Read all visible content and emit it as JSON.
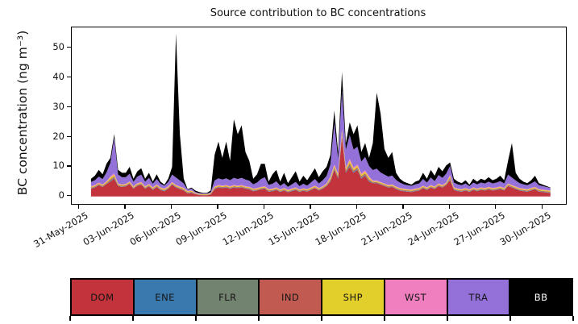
{
  "figure": {
    "title": "Source contribution to BC concentrations",
    "background": "#ffffff"
  },
  "y_axis": {
    "label": "BC concentration (ng m⁻³)",
    "ticks": [
      0,
      10,
      20,
      30,
      40,
      50
    ],
    "min": -2.5,
    "max": 57
  },
  "x_axis": {
    "tick_days": [
      0,
      3,
      6,
      9,
      12,
      15,
      18,
      21,
      24,
      27,
      30
    ],
    "tick_labels": [
      "31-May-2025",
      "03-Jun-2025",
      "06-Jun-2025",
      "09-Jun-2025",
      "12-Jun-2025",
      "15-Jun-2025",
      "18-Jun-2025",
      "21-Jun-2025",
      "24-Jun-2025",
      "27-Jun-2025",
      "30-Jun-2025"
    ],
    "min_day": -0.5,
    "max_day": 31.5,
    "label_rotation_deg": 30
  },
  "chart_data": {
    "type": "area",
    "stacked": true,
    "title": "Source contribution to BC concentrations",
    "ylabel": "BC concentration (ng m⁻³)",
    "x_start": "31-May-2025 18:00",
    "x_step_hours": 6,
    "n_points": 120,
    "ylim": [
      -2.5,
      57
    ],
    "grid": false,
    "legend_position": "bottom",
    "series": [
      {
        "name": "DOM",
        "color": "#c2333c",
        "values": [
          2.6,
          3.0,
          3.8,
          3.2,
          4.2,
          5.0,
          6.0,
          3.5,
          3.2,
          3.4,
          4.2,
          2.6,
          3.6,
          4.0,
          2.6,
          3.4,
          2.2,
          3.2,
          2.2,
          1.8,
          2.6,
          4.0,
          3.0,
          2.5,
          2.0,
          1.0,
          1.2,
          0.8,
          0.5,
          0.4,
          0.4,
          0.7,
          2.5,
          3.0,
          2.8,
          3.0,
          2.6,
          3.0,
          2.8,
          3.0,
          2.6,
          2.4,
          1.8,
          2.0,
          2.4,
          2.6,
          1.6,
          1.8,
          2.2,
          1.5,
          2.0,
          1.4,
          1.8,
          2.2,
          1.5,
          1.9,
          1.6,
          2.2,
          2.8,
          2.0,
          2.6,
          3.5,
          5.0,
          9.0,
          6.0,
          20.0,
          8.0,
          10.0,
          8.0,
          9.0,
          6.0,
          7.0,
          5.0,
          4.5,
          4.5,
          4.0,
          3.5,
          3.0,
          3.2,
          2.5,
          2.0,
          1.8,
          1.6,
          1.5,
          1.8,
          2.0,
          2.8,
          2.2,
          3.0,
          2.5,
          3.5,
          3.0,
          3.8,
          5.5,
          2.2,
          1.8,
          1.6,
          2.0,
          1.5,
          2.2,
          1.8,
          2.2,
          2.0,
          2.4,
          2.0,
          2.2,
          2.5,
          2.0,
          3.5,
          3.0,
          2.5,
          2.0,
          1.8,
          1.6,
          2.0,
          2.4,
          1.6,
          1.5,
          1.3,
          1.2
        ]
      },
      {
        "name": "ENE",
        "color": "#3a79ae",
        "values": [
          0.1,
          0.1,
          0.1,
          0.1,
          0.1,
          0.2,
          0.2,
          0.1,
          0.1,
          0.1,
          0.1,
          0.1,
          0.1,
          0.1,
          0.1,
          0.1,
          0.1,
          0.1,
          0.1,
          0.1,
          0.1,
          0.1,
          0.1,
          0.1,
          0.1,
          0.1,
          0.1,
          0.05,
          0.05,
          0.05,
          0.05,
          0.05,
          0.1,
          0.1,
          0.1,
          0.1,
          0.1,
          0.1,
          0.1,
          0.1,
          0.1,
          0.1,
          0.1,
          0.1,
          0.1,
          0.1,
          0.1,
          0.1,
          0.1,
          0.1,
          0.1,
          0.1,
          0.1,
          0.1,
          0.1,
          0.1,
          0.1,
          0.1,
          0.1,
          0.1,
          0.1,
          0.1,
          0.2,
          0.2,
          0.2,
          0.3,
          0.2,
          0.3,
          0.2,
          0.2,
          0.2,
          0.2,
          0.2,
          0.1,
          0.1,
          0.1,
          0.1,
          0.1,
          0.1,
          0.1,
          0.1,
          0.1,
          0.1,
          0.1,
          0.1,
          0.1,
          0.1,
          0.1,
          0.1,
          0.1,
          0.1,
          0.1,
          0.1,
          0.2,
          0.1,
          0.1,
          0.1,
          0.1,
          0.1,
          0.1,
          0.1,
          0.1,
          0.1,
          0.1,
          0.1,
          0.1,
          0.1,
          0.1,
          0.1,
          0.1,
          0.1,
          0.1,
          0.1,
          0.1,
          0.1,
          0.1,
          0.1,
          0.1,
          0.1,
          0.1
        ]
      },
      {
        "name": "FLR",
        "color": "#72836f",
        "values": [
          0.1,
          0.1,
          0.1,
          0.1,
          0.1,
          0.2,
          0.2,
          0.1,
          0.1,
          0.1,
          0.1,
          0.1,
          0.1,
          0.1,
          0.1,
          0.1,
          0.1,
          0.1,
          0.1,
          0.1,
          0.1,
          0.1,
          0.1,
          0.1,
          0.1,
          0.1,
          0.1,
          0.05,
          0.05,
          0.05,
          0.05,
          0.05,
          0.1,
          0.1,
          0.1,
          0.1,
          0.1,
          0.1,
          0.1,
          0.1,
          0.1,
          0.1,
          0.1,
          0.1,
          0.1,
          0.1,
          0.1,
          0.1,
          0.1,
          0.1,
          0.1,
          0.1,
          0.1,
          0.1,
          0.1,
          0.1,
          0.1,
          0.1,
          0.1,
          0.1,
          0.1,
          0.1,
          0.2,
          0.2,
          0.2,
          0.3,
          0.2,
          0.3,
          0.2,
          0.2,
          0.2,
          0.2,
          0.2,
          0.1,
          0.1,
          0.1,
          0.1,
          0.1,
          0.1,
          0.1,
          0.1,
          0.1,
          0.1,
          0.1,
          0.1,
          0.1,
          0.1,
          0.1,
          0.1,
          0.1,
          0.1,
          0.1,
          0.1,
          0.2,
          0.1,
          0.1,
          0.1,
          0.1,
          0.1,
          0.1,
          0.1,
          0.1,
          0.1,
          0.1,
          0.1,
          0.1,
          0.1,
          0.1,
          0.1,
          0.1,
          0.1,
          0.1,
          0.1,
          0.1,
          0.1,
          0.1,
          0.1,
          0.1,
          0.1,
          0.1
        ]
      },
      {
        "name": "IND",
        "color": "#c15b52",
        "values": [
          0.2,
          0.2,
          0.2,
          0.2,
          0.2,
          0.4,
          0.4,
          0.2,
          0.2,
          0.2,
          0.2,
          0.2,
          0.2,
          0.2,
          0.2,
          0.2,
          0.2,
          0.2,
          0.2,
          0.2,
          0.2,
          0.2,
          0.2,
          0.2,
          0.2,
          0.2,
          0.2,
          0.1,
          0.1,
          0.1,
          0.1,
          0.1,
          0.2,
          0.2,
          0.2,
          0.2,
          0.2,
          0.2,
          0.2,
          0.2,
          0.2,
          0.2,
          0.2,
          0.2,
          0.2,
          0.2,
          0.2,
          0.2,
          0.2,
          0.2,
          0.2,
          0.2,
          0.2,
          0.2,
          0.2,
          0.2,
          0.2,
          0.2,
          0.2,
          0.2,
          0.2,
          0.2,
          0.4,
          0.4,
          0.4,
          0.6,
          0.4,
          0.6,
          0.4,
          0.4,
          0.4,
          0.4,
          0.4,
          0.2,
          0.2,
          0.2,
          0.2,
          0.2,
          0.2,
          0.2,
          0.2,
          0.2,
          0.2,
          0.2,
          0.2,
          0.2,
          0.2,
          0.2,
          0.2,
          0.2,
          0.2,
          0.2,
          0.2,
          0.4,
          0.2,
          0.2,
          0.2,
          0.2,
          0.2,
          0.2,
          0.2,
          0.2,
          0.2,
          0.2,
          0.2,
          0.2,
          0.2,
          0.2,
          0.2,
          0.2,
          0.2,
          0.2,
          0.2,
          0.2,
          0.2,
          0.2,
          0.2,
          0.2,
          0.2,
          0.2
        ]
      },
      {
        "name": "SHP",
        "color": "#e3cf2b",
        "values": [
          0.3,
          0.3,
          0.3,
          0.3,
          0.3,
          0.6,
          0.6,
          0.3,
          0.3,
          0.3,
          0.3,
          0.3,
          0.3,
          0.3,
          0.3,
          0.3,
          0.3,
          0.3,
          0.3,
          0.3,
          0.3,
          0.3,
          0.3,
          0.3,
          0.3,
          0.3,
          0.3,
          0.15,
          0.15,
          0.15,
          0.15,
          0.15,
          0.3,
          0.3,
          0.3,
          0.3,
          0.3,
          0.3,
          0.3,
          0.3,
          0.3,
          0.3,
          0.3,
          0.3,
          0.3,
          0.3,
          0.3,
          0.3,
          0.3,
          0.3,
          0.3,
          0.3,
          0.3,
          0.3,
          0.3,
          0.3,
          0.3,
          0.3,
          0.3,
          0.3,
          0.3,
          0.3,
          0.6,
          0.6,
          0.6,
          0.9,
          0.6,
          0.9,
          0.6,
          0.6,
          0.6,
          0.6,
          0.6,
          0.3,
          0.3,
          0.3,
          0.3,
          0.3,
          0.3,
          0.3,
          0.3,
          0.3,
          0.3,
          0.3,
          0.3,
          0.3,
          0.3,
          0.3,
          0.3,
          0.3,
          0.3,
          0.3,
          0.3,
          0.6,
          0.3,
          0.3,
          0.3,
          0.3,
          0.3,
          0.3,
          0.3,
          0.3,
          0.3,
          0.3,
          0.3,
          0.3,
          0.3,
          0.3,
          0.3,
          0.3,
          0.3,
          0.3,
          0.3,
          0.3,
          0.3,
          0.3,
          0.3,
          0.3,
          0.3,
          0.3
        ]
      },
      {
        "name": "WST",
        "color": "#f07fc0",
        "values": [
          0.2,
          0.2,
          0.2,
          0.2,
          0.2,
          0.4,
          0.4,
          0.2,
          0.2,
          0.2,
          0.2,
          0.2,
          0.2,
          0.2,
          0.2,
          0.2,
          0.2,
          0.2,
          0.2,
          0.2,
          0.2,
          0.2,
          0.2,
          0.2,
          0.2,
          0.2,
          0.2,
          0.1,
          0.1,
          0.1,
          0.1,
          0.1,
          0.2,
          0.2,
          0.2,
          0.2,
          0.2,
          0.2,
          0.2,
          0.2,
          0.2,
          0.2,
          0.2,
          0.2,
          0.2,
          0.2,
          0.2,
          0.2,
          0.2,
          0.2,
          0.2,
          0.2,
          0.2,
          0.2,
          0.2,
          0.2,
          0.2,
          0.2,
          0.2,
          0.2,
          0.2,
          0.2,
          0.4,
          0.4,
          0.4,
          0.6,
          0.4,
          0.6,
          0.4,
          0.4,
          0.4,
          0.4,
          0.4,
          0.2,
          0.2,
          0.2,
          0.2,
          0.2,
          0.2,
          0.2,
          0.2,
          0.2,
          0.2,
          0.2,
          0.2,
          0.2,
          0.2,
          0.2,
          0.2,
          0.2,
          0.2,
          0.2,
          0.2,
          0.4,
          0.2,
          0.2,
          0.2,
          0.2,
          0.2,
          0.2,
          0.2,
          0.2,
          0.2,
          0.2,
          0.2,
          0.2,
          0.2,
          0.2,
          0.2,
          0.2,
          0.2,
          0.2,
          0.2,
          0.2,
          0.2,
          0.2,
          0.2,
          0.2,
          0.2,
          0.2
        ]
      },
      {
        "name": "TRA",
        "color": "#9471d9",
        "values": [
          1.4,
          1.6,
          2.0,
          1.8,
          3.0,
          4.5,
          12.0,
          3.0,
          2.4,
          2.2,
          2.6,
          1.5,
          2.2,
          2.5,
          1.5,
          2.0,
          1.2,
          1.8,
          1.2,
          1.0,
          1.4,
          2.5,
          2.5,
          2.0,
          1.5,
          0.4,
          0.6,
          0.3,
          0.2,
          0.15,
          0.15,
          0.3,
          2.0,
          2.2,
          2.0,
          2.2,
          2.0,
          2.4,
          2.2,
          2.4,
          2.2,
          2.0,
          1.4,
          1.8,
          2.6,
          3.0,
          1.4,
          1.6,
          2.0,
          1.2,
          1.6,
          1.0,
          1.4,
          1.8,
          1.1,
          1.5,
          1.2,
          1.7,
          2.2,
          1.5,
          2.0,
          2.5,
          4.0,
          14.0,
          5.0,
          13.0,
          6.0,
          8.0,
          6.0,
          6.0,
          4.0,
          4.5,
          3.5,
          3.5,
          4.0,
          3.2,
          3.0,
          2.8,
          3.0,
          2.2,
          1.8,
          1.4,
          1.3,
          1.2,
          1.4,
          1.5,
          2.2,
          1.6,
          2.5,
          1.8,
          2.8,
          2.4,
          3.0,
          3.0,
          1.6,
          1.4,
          1.3,
          1.5,
          1.1,
          1.6,
          1.4,
          1.6,
          1.5,
          1.7,
          1.5,
          1.6,
          1.8,
          1.5,
          3.0,
          2.5,
          2.0,
          1.6,
          1.4,
          1.3,
          1.5,
          1.8,
          1.3,
          1.1,
          1.0,
          0.8
        ]
      },
      {
        "name": "BB",
        "color": "#000000",
        "values": [
          1.1,
          1.5,
          2.3,
          1.6,
          2.9,
          1.7,
          1.2,
          1.6,
          1.5,
          1.5,
          2.3,
          1.0,
          1.8,
          2.1,
          1.0,
          1.7,
          0.7,
          1.6,
          0.7,
          0.3,
          1.1,
          2.6,
          48.6,
          15.6,
          1.6,
          0.2,
          0.3,
          0.45,
          0.35,
          0.2,
          0.2,
          0.55,
          8.6,
          12.4,
          7.3,
          12.4,
          6.5,
          19.7,
          15.1,
          17.7,
          9.3,
          6.7,
          1.9,
          2.8,
          5.1,
          4.5,
          1.1,
          3.2,
          3.9,
          1.4,
          3.5,
          1.2,
          2.4,
          3.6,
          1.5,
          2.7,
          1.8,
          2.7,
          3.6,
          2.1,
          3.0,
          3.1,
          3.2,
          4.2,
          2.2,
          6.3,
          2.2,
          4.3,
          5.2,
          7.2,
          3.2,
          4.7,
          2.7,
          9.1,
          25.6,
          19.9,
          8.6,
          6.3,
          7.9,
          2.4,
          1.3,
          0.9,
          0.7,
          0.4,
          0.9,
          1.1,
          2.1,
          1.3,
          2.6,
          1.8,
          2.8,
          2.2,
          2.8,
          1.2,
          1.3,
          0.9,
          0.7,
          1.1,
          0.5,
          1.3,
          0.9,
          1.3,
          1.1,
          1.5,
          1.1,
          1.3,
          1.8,
          1.1,
          4.6,
          11.6,
          2.6,
          1.5,
          0.9,
          0.7,
          1.1,
          1.9,
          0.7,
          0.5,
          0.3,
          0.1
        ]
      }
    ]
  },
  "legend": {
    "items": [
      {
        "label": "DOM",
        "color": "#c2333c",
        "text_color": "#151515"
      },
      {
        "label": "ENE",
        "color": "#3a79ae",
        "text_color": "#151515"
      },
      {
        "label": "FLR",
        "color": "#72836f",
        "text_color": "#151515"
      },
      {
        "label": "IND",
        "color": "#c15b52",
        "text_color": "#151515"
      },
      {
        "label": "SHP",
        "color": "#e3cf2b",
        "text_color": "#151515"
      },
      {
        "label": "WST",
        "color": "#f07fc0",
        "text_color": "#151515"
      },
      {
        "label": "TRA",
        "color": "#9471d9",
        "text_color": "#151515"
      },
      {
        "label": "BB",
        "color": "#000000",
        "text_color": "#ffffff"
      }
    ]
  }
}
